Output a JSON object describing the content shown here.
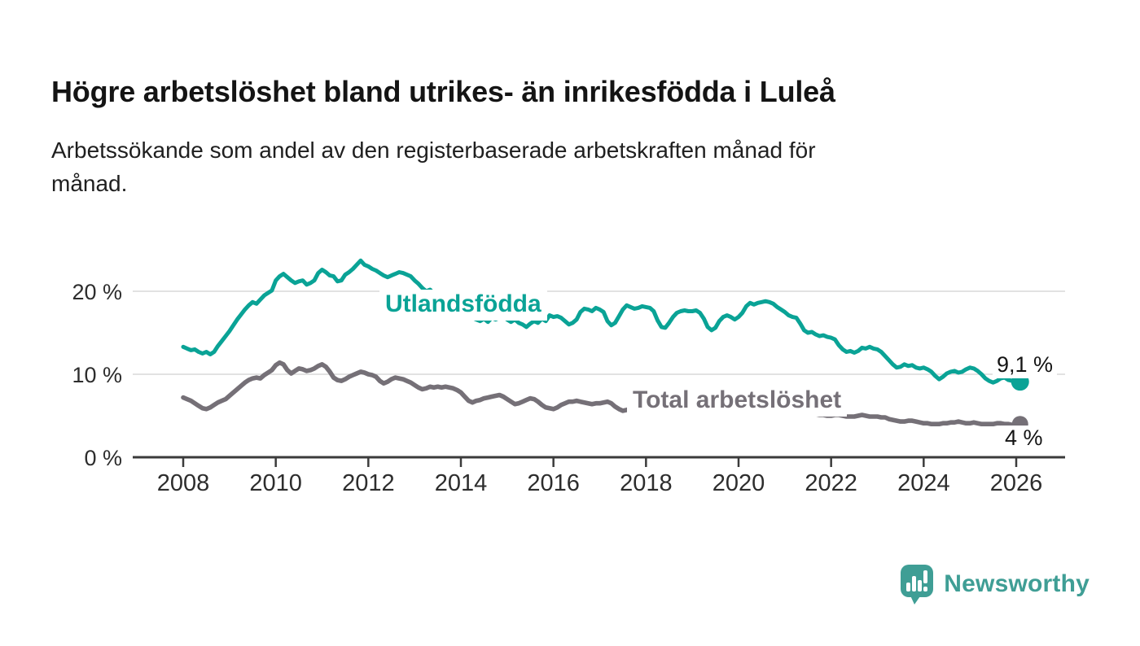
{
  "header": {
    "title": "Högre arbetslöshet bland utrikes- än inrikesfödda i Luleå",
    "subtitle_lines": [
      "Arbetssökande som andel av den registerbaserade arbetskraften månad för",
      "månad."
    ]
  },
  "chart_data": {
    "type": "line",
    "title": "Högre arbetslöshet bland utrikes- än inrikesfödda i Luleå",
    "xlabel": "",
    "ylabel": "Arbetssökande som andel av den registerbaserade arbetskraften",
    "grid": true,
    "legend_position": "inline-labels-on-lines",
    "x_start": 2008.0,
    "x_step": 0.0833,
    "x_axis_range": [
      2006.9,
      2027.05
    ],
    "ylim": [
      0,
      25.7
    ],
    "xticks": [
      2008,
      2010,
      2012,
      2014,
      2016,
      2018,
      2020,
      2022,
      2024,
      2026
    ],
    "ygrid": [
      10,
      20
    ],
    "y_tick_labels": [
      {
        "value": 0,
        "label": "0 %"
      },
      {
        "value": 10,
        "label": "10 %"
      },
      {
        "value": 20,
        "label": "20 %"
      }
    ],
    "series": [
      {
        "name": "Utlandsfödda",
        "color": "#0aa396",
        "end_label": "9,1 %",
        "end_value": 9.1,
        "values": [
          13.3,
          13.1,
          12.9,
          13.0,
          12.7,
          12.5,
          12.7,
          12.4,
          12.7,
          13.4,
          14.0,
          14.6,
          15.2,
          15.9,
          16.6,
          17.2,
          17.8,
          18.3,
          18.7,
          18.5,
          19.0,
          19.5,
          19.8,
          20.1,
          21.3,
          21.8,
          22.1,
          21.7,
          21.3,
          21.0,
          21.2,
          21.3,
          20.8,
          21.0,
          21.3,
          22.2,
          22.6,
          22.3,
          21.9,
          21.8,
          21.2,
          21.3,
          22.0,
          22.3,
          22.7,
          23.2,
          23.7,
          23.2,
          23.0,
          22.7,
          22.5,
          22.2,
          21.9,
          21.7,
          21.9,
          22.1,
          22.3,
          22.2,
          22.0,
          21.8,
          21.3,
          20.9,
          20.4,
          20.0,
          20.2,
          19.7,
          19.9,
          19.5,
          19.7,
          19.4,
          19.0,
          18.4,
          17.8,
          17.3,
          17.0,
          16.8,
          16.6,
          16.4,
          16.7,
          16.3,
          16.8,
          16.6,
          16.8,
          17.0,
          16.6,
          16.3,
          16.6,
          16.2,
          16.0,
          15.7,
          16.1,
          16.4,
          16.2,
          16.7,
          16.4,
          17.1,
          16.9,
          17.0,
          16.8,
          16.4,
          16.0,
          16.2,
          16.6,
          17.5,
          17.9,
          17.8,
          17.6,
          18.0,
          17.8,
          17.5,
          16.4,
          15.9,
          16.2,
          17.0,
          17.8,
          18.3,
          18.1,
          17.9,
          18.0,
          18.2,
          18.1,
          18.0,
          17.6,
          16.5,
          15.7,
          15.6,
          16.2,
          16.9,
          17.4,
          17.6,
          17.7,
          17.6,
          17.6,
          17.7,
          17.4,
          16.7,
          15.7,
          15.3,
          15.6,
          16.4,
          16.9,
          17.1,
          16.9,
          16.6,
          16.9,
          17.4,
          18.2,
          18.6,
          18.4,
          18.6,
          18.7,
          18.8,
          18.7,
          18.5,
          18.1,
          17.8,
          17.5,
          17.1,
          16.9,
          16.8,
          16.1,
          15.3,
          15.0,
          15.1,
          14.8,
          14.6,
          14.7,
          14.5,
          14.4,
          14.2,
          13.5,
          13.0,
          12.7,
          12.8,
          12.6,
          12.8,
          13.2,
          13.1,
          13.3,
          13.1,
          13.0,
          12.7,
          12.2,
          11.7,
          11.2,
          10.8,
          10.9,
          11.2,
          11.0,
          11.1,
          10.8,
          10.7,
          10.8,
          10.6,
          10.3,
          9.8,
          9.4,
          9.7,
          10.1,
          10.3,
          10.4,
          10.2,
          10.3,
          10.6,
          10.8,
          10.7,
          10.4,
          10.0,
          9.5,
          9.2,
          9.0,
          9.2,
          9.5,
          9.6,
          9.3,
          9.2,
          9.3,
          9.1
        ]
      },
      {
        "name": "Total arbetslöshet",
        "color": "#757077",
        "end_label": "4 %",
        "end_value": 4.0,
        "values": [
          7.2,
          7.0,
          6.8,
          6.5,
          6.2,
          5.9,
          5.8,
          6.0,
          6.3,
          6.6,
          6.8,
          7.0,
          7.4,
          7.8,
          8.2,
          8.6,
          9.0,
          9.3,
          9.5,
          9.6,
          9.5,
          9.9,
          10.2,
          10.5,
          11.1,
          11.4,
          11.2,
          10.5,
          10.1,
          10.4,
          10.7,
          10.6,
          10.4,
          10.5,
          10.7,
          11.0,
          11.2,
          10.9,
          10.3,
          9.6,
          9.3,
          9.2,
          9.4,
          9.7,
          9.9,
          10.1,
          10.3,
          10.2,
          10.0,
          9.9,
          9.7,
          9.2,
          8.9,
          9.1,
          9.4,
          9.6,
          9.5,
          9.4,
          9.2,
          9.0,
          8.7,
          8.4,
          8.2,
          8.3,
          8.5,
          8.4,
          8.5,
          8.4,
          8.5,
          8.4,
          8.3,
          8.1,
          7.8,
          7.3,
          6.8,
          6.6,
          6.8,
          6.9,
          7.1,
          7.2,
          7.3,
          7.4,
          7.5,
          7.3,
          7.0,
          6.7,
          6.4,
          6.5,
          6.7,
          6.9,
          7.1,
          7.0,
          6.7,
          6.3,
          6.0,
          5.9,
          5.8,
          6.0,
          6.3,
          6.5,
          6.7,
          6.7,
          6.8,
          6.7,
          6.6,
          6.5,
          6.4,
          6.5,
          6.5,
          6.6,
          6.7,
          6.5,
          6.1,
          5.8,
          5.6,
          5.7,
          5.9,
          6.1,
          6.2,
          6.3,
          6.3,
          6.2,
          6.0,
          5.8,
          5.6,
          5.5,
          5.6,
          5.7,
          5.7,
          5.6,
          5.5,
          5.4,
          5.4,
          5.3,
          5.2,
          5.2,
          5.3,
          5.4,
          5.5,
          5.5,
          5.4,
          5.3,
          5.3,
          5.4,
          5.6,
          5.9,
          6.4,
          6.8,
          7.0,
          7.1,
          7.2,
          7.1,
          7.0,
          6.8,
          6.6,
          6.5,
          6.4,
          6.2,
          6.0,
          5.8,
          5.6,
          5.5,
          5.4,
          5.3,
          5.2,
          5.1,
          5.1,
          5.0,
          5.0,
          5.1,
          5.1,
          5.0,
          4.9,
          4.9,
          4.9,
          5.0,
          5.1,
          5.0,
          4.9,
          4.9,
          4.9,
          4.8,
          4.8,
          4.6,
          4.5,
          4.4,
          4.3,
          4.3,
          4.4,
          4.4,
          4.3,
          4.2,
          4.1,
          4.1,
          4.0,
          4.0,
          4.0,
          4.1,
          4.1,
          4.2,
          4.2,
          4.3,
          4.2,
          4.1,
          4.1,
          4.2,
          4.1,
          4.0,
          4.0,
          4.0,
          4.0,
          4.1,
          4.1,
          4.0,
          4.0,
          3.9,
          3.9,
          4.0
        ]
      }
    ]
  },
  "footer": {
    "brand": "Newsworthy",
    "brand_color": "#3f9e95",
    "logo_icon": "bar-chart-speech-bubble-icon"
  }
}
